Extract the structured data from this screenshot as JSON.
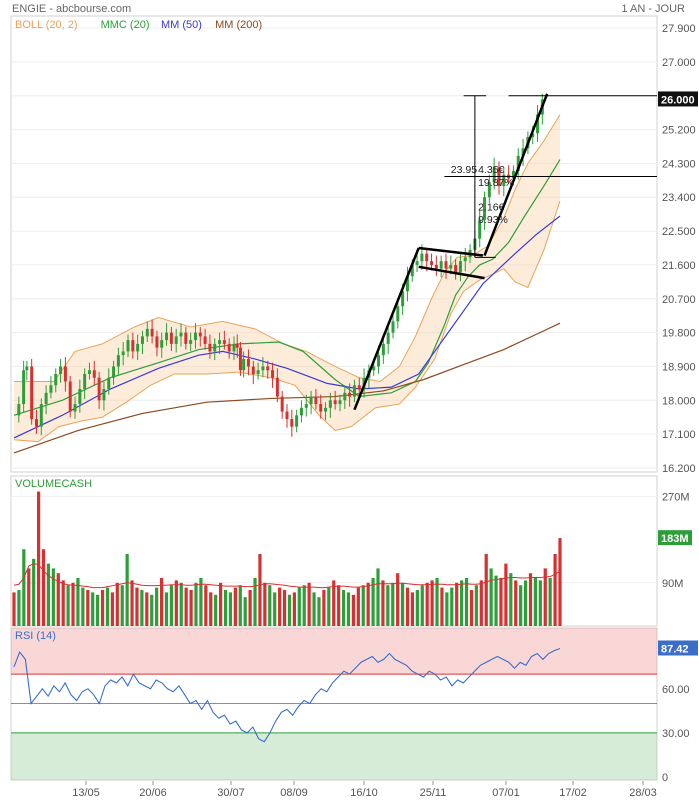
{
  "header": {
    "title": "ENGIE - abcbourse.com",
    "period": "1 AN - JOUR"
  },
  "chart_data": [
    {
      "type": "candlestick",
      "panel": "price",
      "legend": [
        {
          "name": "BOLL (20, 2)",
          "color": "#e8a45a"
        },
        {
          "name": "MMC (20)",
          "color": "#2e9e3a"
        },
        {
          "name": "MM (50)",
          "color": "#3a3ad6"
        },
        {
          "name": "MM (200)",
          "color": "#8b4a1e"
        }
      ],
      "ylim": [
        16200,
        27900
      ],
      "yticks": [
        "27.900",
        "27.000",
        "26.100",
        "25.200",
        "24.300",
        "23.400",
        "22.500",
        "21.600",
        "20.700",
        "19.800",
        "18.900",
        "18.000",
        "17.100",
        "16.200"
      ],
      "last_price": "26.000",
      "xticks": [
        "13/05",
        "20/06",
        "30/07",
        "08/09",
        "16/10",
        "25/11",
        "07/01",
        "17/02",
        "28/03"
      ],
      "ma20": [
        [
          0,
          17.6
        ],
        [
          30,
          18.0
        ],
        [
          60,
          18.6
        ],
        [
          90,
          19.0
        ],
        [
          115,
          19.35
        ],
        [
          140,
          19.5
        ],
        [
          165,
          19.55
        ],
        [
          180,
          19.3
        ],
        [
          200,
          18.55
        ],
        [
          215,
          18.1
        ],
        [
          235,
          18.2
        ],
        [
          250,
          18.5
        ],
        [
          258,
          19.0
        ],
        [
          268,
          20.0
        ],
        [
          275,
          20.8
        ],
        [
          283,
          21.3
        ],
        [
          290,
          21.6
        ],
        [
          298,
          21.75
        ],
        [
          308,
          22.2
        ],
        [
          318,
          22.9
        ],
        [
          330,
          23.7
        ],
        [
          340,
          24.4
        ]
      ],
      "ma50": [
        [
          0,
          17.0
        ],
        [
          30,
          17.6
        ],
        [
          60,
          18.3
        ],
        [
          90,
          18.85
        ],
        [
          115,
          19.2
        ],
        [
          130,
          19.3
        ],
        [
          150,
          19.1
        ],
        [
          170,
          18.85
        ],
        [
          195,
          18.45
        ],
        [
          215,
          18.3
        ],
        [
          235,
          18.35
        ],
        [
          252,
          18.7
        ],
        [
          262,
          19.3
        ],
        [
          272,
          19.9
        ],
        [
          282,
          20.5
        ],
        [
          292,
          21.1
        ],
        [
          302,
          21.5
        ],
        [
          312,
          21.9
        ],
        [
          325,
          22.4
        ],
        [
          340,
          22.9
        ]
      ],
      "ma200": [
        [
          0,
          16.6
        ],
        [
          40,
          17.2
        ],
        [
          80,
          17.65
        ],
        [
          120,
          17.95
        ],
        [
          160,
          18.05
        ],
        [
          200,
          18.1
        ],
        [
          230,
          18.25
        ],
        [
          255,
          18.55
        ],
        [
          280,
          18.95
        ],
        [
          305,
          19.35
        ],
        [
          325,
          19.75
        ],
        [
          340,
          20.05
        ]
      ],
      "boll_upper": [
        [
          0,
          18.5
        ],
        [
          25,
          18.5
        ],
        [
          38,
          19.3
        ],
        [
          55,
          19.5
        ],
        [
          75,
          19.95
        ],
        [
          90,
          20.2
        ],
        [
          110,
          19.95
        ],
        [
          130,
          20.1
        ],
        [
          150,
          19.9
        ],
        [
          168,
          19.5
        ],
        [
          182,
          19.3
        ],
        [
          200,
          18.9
        ],
        [
          215,
          18.6
        ],
        [
          228,
          18.5
        ],
        [
          240,
          18.9
        ],
        [
          250,
          19.7
        ],
        [
          260,
          20.7
        ],
        [
          268,
          21.4
        ],
        [
          276,
          21.8
        ],
        [
          285,
          21.85
        ],
        [
          295,
          22.1
        ],
        [
          305,
          22.85
        ],
        [
          312,
          23.6
        ],
        [
          320,
          24.3
        ],
        [
          330,
          24.9
        ],
        [
          340,
          25.6
        ]
      ],
      "boll_lower": [
        [
          0,
          16.95
        ],
        [
          15,
          16.9
        ],
        [
          28,
          17.3
        ],
        [
          42,
          17.45
        ],
        [
          55,
          17.55
        ],
        [
          70,
          17.95
        ],
        [
          85,
          18.4
        ],
        [
          100,
          18.7
        ],
        [
          120,
          18.7
        ],
        [
          140,
          18.75
        ],
        [
          160,
          18.6
        ],
        [
          175,
          18.4
        ],
        [
          190,
          17.6
        ],
        [
          200,
          17.2
        ],
        [
          210,
          17.3
        ],
        [
          225,
          17.8
        ],
        [
          240,
          17.9
        ],
        [
          250,
          18.35
        ],
        [
          262,
          19.1
        ],
        [
          272,
          20.3
        ],
        [
          280,
          20.9
        ],
        [
          290,
          21.2
        ],
        [
          298,
          21.35
        ],
        [
          305,
          21.5
        ],
        [
          312,
          21.15
        ],
        [
          320,
          21.0
        ],
        [
          330,
          22.0
        ],
        [
          340,
          23.3
        ]
      ],
      "annotations": [
        {
          "text": "23.95"
        },
        {
          "text": "4.35€"
        },
        {
          "text": "19.87%"
        },
        {
          "text": "2.16€"
        },
        {
          "text": "9.93%"
        }
      ],
      "close_points": [
        [
          0,
          17.6
        ],
        [
          3,
          17.9
        ],
        [
          6,
          18.8
        ],
        [
          8,
          18.9
        ],
        [
          11,
          17.5
        ],
        [
          14,
          17.3
        ],
        [
          17,
          17.9
        ],
        [
          20,
          18.2
        ],
        [
          23,
          18.4
        ],
        [
          26,
          18.7
        ],
        [
          29,
          18.9
        ],
        [
          32,
          18.5
        ],
        [
          35,
          17.7
        ],
        [
          38,
          17.9
        ],
        [
          41,
          18.3
        ],
        [
          44,
          18.7
        ],
        [
          47,
          18.8
        ],
        [
          50,
          18.6
        ],
        [
          53,
          18.0
        ],
        [
          56,
          18.3
        ],
        [
          59,
          18.6
        ],
        [
          62,
          18.9
        ],
        [
          65,
          19.2
        ],
        [
          68,
          19.3
        ],
        [
          71,
          19.6
        ],
        [
          74,
          19.3
        ],
        [
          77,
          19.5
        ],
        [
          80,
          19.7
        ],
        [
          83,
          19.9
        ],
        [
          86,
          19.7
        ],
        [
          89,
          19.4
        ],
        [
          92,
          19.6
        ],
        [
          95,
          19.8
        ],
        [
          98,
          19.5
        ],
        [
          101,
          19.7
        ],
        [
          104,
          19.8
        ],
        [
          107,
          19.5
        ],
        [
          110,
          19.6
        ],
        [
          113,
          19.8
        ],
        [
          116,
          19.7
        ],
        [
          119,
          19.5
        ],
        [
          122,
          19.3
        ],
        [
          125,
          19.5
        ],
        [
          128,
          19.6
        ],
        [
          131,
          19.5
        ],
        [
          134,
          19.3
        ],
        [
          137,
          19.5
        ],
        [
          139,
          19.4
        ],
        [
          141,
          18.8
        ],
        [
          143,
          19.1
        ],
        [
          146,
          18.9
        ],
        [
          149,
          18.7
        ],
        [
          152,
          18.8
        ],
        [
          155,
          18.9
        ],
        [
          158,
          18.8
        ],
        [
          161,
          18.6
        ],
        [
          164,
          18.1
        ],
        [
          167,
          17.7
        ],
        [
          170,
          17.5
        ],
        [
          173,
          17.3
        ],
        [
          176,
          17.6
        ],
        [
          179,
          17.8
        ],
        [
          182,
          17.9
        ],
        [
          185,
          18.1
        ],
        [
          188,
          17.9
        ],
        [
          191,
          17.7
        ],
        [
          194,
          17.8
        ],
        [
          197,
          18.0
        ],
        [
          200,
          17.9
        ],
        [
          203,
          18.0
        ],
        [
          206,
          18.2
        ],
        [
          209,
          18.1
        ],
        [
          212,
          18.4
        ],
        [
          215,
          18.3
        ],
        [
          218,
          18.6
        ],
        [
          221,
          18.8
        ],
        [
          224,
          18.9
        ],
        [
          227,
          19.2
        ],
        [
          230,
          19.5
        ],
        [
          233,
          19.8
        ],
        [
          236,
          20.1
        ],
        [
          239,
          20.5
        ],
        [
          242,
          20.9
        ],
        [
          245,
          21.3
        ],
        [
          248,
          21.6
        ],
        [
          251,
          21.7
        ],
        [
          254,
          21.9
        ],
        [
          257,
          21.7
        ],
        [
          260,
          21.6
        ],
        [
          263,
          21.5
        ],
        [
          266,
          21.7
        ],
        [
          269,
          21.5
        ],
        [
          272,
          21.6
        ],
        [
          275,
          21.4
        ],
        [
          278,
          21.7
        ],
        [
          281,
          21.8
        ],
        [
          284,
          22.0
        ],
        [
          287,
          22.3
        ],
        [
          290,
          22.8
        ],
        [
          293,
          23.4
        ],
        [
          296,
          23.8
        ],
        [
          299,
          24.2
        ],
        [
          302,
          23.7
        ],
        [
          305,
          24.0
        ],
        [
          308,
          23.9
        ],
        [
          311,
          24.1
        ],
        [
          314,
          24.5
        ],
        [
          317,
          24.7
        ],
        [
          320,
          25.0
        ],
        [
          323,
          25.1
        ],
        [
          326,
          25.6
        ],
        [
          329,
          26.0
        ]
      ]
    },
    {
      "type": "bar",
      "panel": "volume",
      "legend": [
        {
          "name": "VOLUMECASH",
          "color": "#2e9e3a"
        }
      ],
      "yticks": [
        "270M",
        "90M"
      ],
      "ylim": [
        0,
        300
      ],
      "last_value": "183M",
      "values_M": [
        70,
        75,
        160,
        120,
        140,
        280,
        160,
        130,
        120,
        110,
        95,
        85,
        90,
        100,
        80,
        75,
        70,
        65,
        75,
        80,
        70,
        90,
        85,
        150,
        95,
        80,
        75,
        70,
        65,
        80,
        100,
        70,
        85,
        95,
        90,
        80,
        75,
        90,
        100,
        85,
        70,
        65,
        90,
        75,
        70,
        80,
        85,
        60,
        75,
        100,
        150,
        90,
        85,
        70,
        80,
        75,
        65,
        70,
        80,
        85,
        90,
        70,
        60,
        75,
        80,
        95,
        85,
        75,
        70,
        65,
        80,
        85,
        90,
        100,
        120,
        95,
        85,
        90,
        110,
        90,
        80,
        70,
        75,
        85,
        90,
        95,
        100,
        80,
        70,
        80,
        90,
        95,
        100,
        75,
        85,
        95,
        150,
        120,
        105,
        100,
        130,
        110,
        95,
        85,
        95,
        110,
        100,
        95,
        120,
        100,
        150,
        183
      ],
      "avg_line_M": [
        85,
        87,
        100,
        125,
        130,
        128,
        115,
        105,
        98,
        93,
        88,
        86,
        85,
        85,
        83,
        82,
        80,
        80,
        80,
        82,
        84,
        86,
        88,
        90,
        89,
        87,
        85,
        84,
        84,
        84,
        85,
        85,
        86,
        86,
        86,
        85,
        85,
        86,
        87,
        87,
        86,
        85,
        84,
        83,
        83,
        83,
        83,
        82,
        82,
        83,
        86,
        88,
        88,
        87,
        86,
        85,
        83,
        82,
        81,
        81,
        81,
        81,
        80,
        80,
        81,
        82,
        83,
        83,
        82,
        81,
        81,
        82,
        84,
        86,
        88,
        88,
        88,
        88,
        89,
        89,
        88,
        87,
        86,
        86,
        86,
        87,
        87,
        87,
        86,
        86,
        86,
        87,
        88,
        87,
        87,
        88,
        92,
        95,
        97,
        98,
        100,
        101,
        101,
        100,
        100,
        101,
        101,
        101,
        102,
        103,
        108,
        114
      ]
    },
    {
      "type": "line",
      "panel": "rsi",
      "legend": [
        {
          "name": "RSI (14)",
          "color": "#3a6ec9"
        }
      ],
      "yticks": [
        "60.00",
        "30.00",
        "0"
      ],
      "ylim": [
        0,
        100
      ],
      "overbought": 70,
      "oversold": 30,
      "last_value": "87.42",
      "values": [
        75,
        85,
        80,
        50,
        55,
        60,
        55,
        62,
        58,
        64,
        56,
        52,
        58,
        60,
        56,
        50,
        62,
        66,
        64,
        68,
        62,
        70,
        64,
        62,
        60,
        66,
        64,
        60,
        58,
        62,
        56,
        50,
        52,
        46,
        52,
        44,
        40,
        42,
        36,
        38,
        32,
        30,
        34,
        26,
        24,
        30,
        38,
        44,
        46,
        42,
        48,
        52,
        50,
        56,
        60,
        58,
        64,
        68,
        72,
        70,
        74,
        78,
        80,
        82,
        78,
        80,
        84,
        80,
        78,
        76,
        72,
        70,
        68,
        72,
        70,
        66,
        68,
        62,
        66,
        64,
        68,
        72,
        76,
        78,
        80,
        82,
        80,
        78,
        74,
        78,
        76,
        82,
        84,
        80,
        84,
        86,
        87.42
      ]
    }
  ]
}
